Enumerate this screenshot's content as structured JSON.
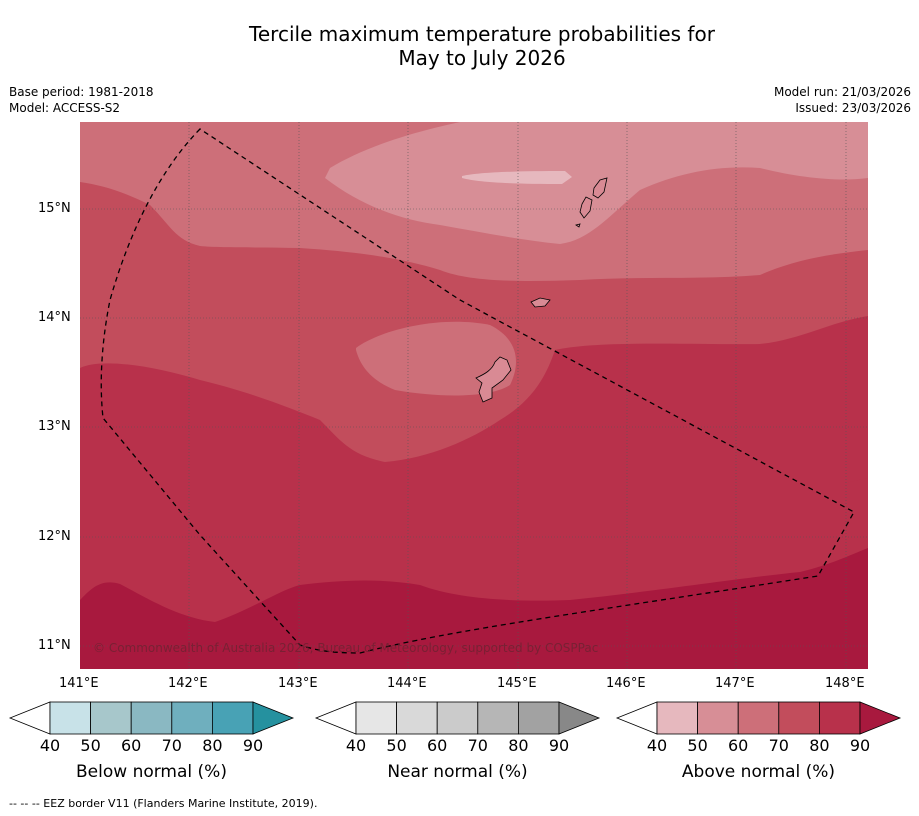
{
  "title": {
    "line1": "Tercile maximum temperature probabilities for",
    "line2": "May to July 2026"
  },
  "meta": {
    "base_period": "Base period: 1981-2018",
    "model": "Model: ACCESS-S2",
    "model_run": "Model run: 21/03/2026",
    "issued": "Issued: 23/03/2026"
  },
  "map": {
    "lat_labels": [
      "15°N",
      "14°N",
      "13°N",
      "12°N",
      "11°N"
    ],
    "lon_labels": [
      "141°E",
      "142°E",
      "143°E",
      "144°E",
      "145°E",
      "146°E",
      "147°E",
      "148°E"
    ],
    "credit": "© Commonwealth of Australia 2026, Bureau of Meteorology, supported by COSPPac"
  },
  "colorbars": [
    {
      "name": "below",
      "label": "Below normal (%)",
      "ticks": [
        "40",
        "50",
        "60",
        "70",
        "80",
        "90"
      ],
      "colors": [
        "#ffffff",
        "#c8e2e8",
        "#a7c7cb",
        "#8ab8c2",
        "#6fafbe",
        "#48a2b5",
        "#25919f"
      ]
    },
    {
      "name": "near",
      "label": "Near normal (%)",
      "ticks": [
        "40",
        "50",
        "60",
        "70",
        "80",
        "90"
      ],
      "colors": [
        "#ffffff",
        "#e6e6e6",
        "#d9d9d9",
        "#cbcbcb",
        "#b6b6b6",
        "#a2a2a2",
        "#888888"
      ]
    },
    {
      "name": "above",
      "label": "Above normal (%)",
      "ticks": [
        "40",
        "50",
        "60",
        "70",
        "80",
        "90"
      ],
      "colors": [
        "#ffffff",
        "#e6b8be",
        "#d78e96",
        "#cd6f79",
        "#c24d5c",
        "#b8314b",
        "#a8193e"
      ]
    }
  ],
  "footer": "-- -- -- EEZ border V11 (Flanders Marine Institute, 2019)."
}
